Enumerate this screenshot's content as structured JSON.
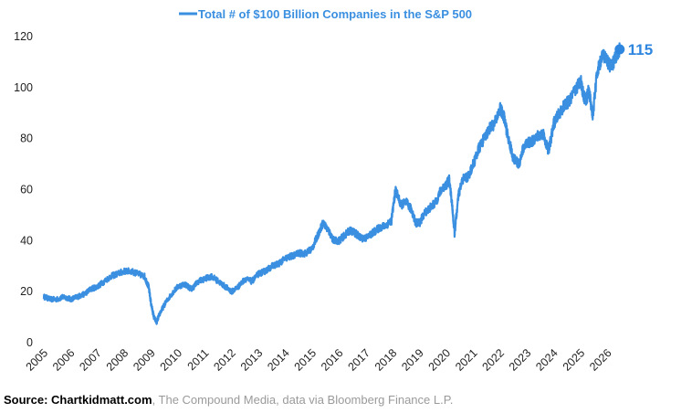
{
  "colors": {
    "line": "#3a8fe0",
    "callout": "#2f86df",
    "source_grey": "#9a9a9a"
  },
  "footer": {
    "source": "Source: Chartkidmatt.com",
    "rest": ", The Compound Media, data via Bloomberg Finance L.P."
  },
  "chart_data": {
    "type": "line",
    "title": "",
    "xlabel": "",
    "ylabel": "",
    "legend": {
      "label": "Total # of $100 Billion Companies in the S&P 500",
      "position": "top-center"
    },
    "grid": false,
    "xlim": [
      2005,
      2026.9
    ],
    "ylim": [
      0,
      120
    ],
    "x_ticks": [
      "2005",
      "2006",
      "2007",
      "2008",
      "2009",
      "2010",
      "2011",
      "2012",
      "2013",
      "2014",
      "2015",
      "2016",
      "2017",
      "2018",
      "2019",
      "2020",
      "2021",
      "2022",
      "2023",
      "2024",
      "2025",
      "2026"
    ],
    "y_ticks": [
      0,
      20,
      40,
      60,
      80,
      100,
      120
    ],
    "end_label": "115",
    "series": [
      {
        "name": "Total # of $100 Billion Companies in the S&P 500",
        "x": [
          2005.0,
          2005.25,
          2005.5,
          2005.75,
          2006.0,
          2006.25,
          2006.5,
          2006.75,
          2007.0,
          2007.25,
          2007.5,
          2007.75,
          2008.0,
          2008.25,
          2008.5,
          2008.75,
          2008.9,
          2009.0,
          2009.1,
          2009.2,
          2009.3,
          2009.5,
          2009.75,
          2010.0,
          2010.25,
          2010.5,
          2010.75,
          2011.0,
          2011.25,
          2011.5,
          2011.75,
          2012.0,
          2012.25,
          2012.5,
          2012.75,
          2013.0,
          2013.25,
          2013.5,
          2013.75,
          2014.0,
          2014.25,
          2014.5,
          2014.75,
          2015.0,
          2015.2,
          2015.4,
          2015.6,
          2015.8,
          2016.0,
          2016.2,
          2016.4,
          2016.6,
          2016.8,
          2017.0,
          2017.25,
          2017.5,
          2017.75,
          2017.95,
          2018.1,
          2018.3,
          2018.5,
          2018.7,
          2018.85,
          2019.0,
          2019.2,
          2019.4,
          2019.6,
          2019.8,
          2020.0,
          2020.1,
          2020.2,
          2020.3,
          2020.45,
          2020.6,
          2020.8,
          2021.0,
          2021.2,
          2021.4,
          2021.6,
          2021.8,
          2022.0,
          2022.15,
          2022.3,
          2022.5,
          2022.7,
          2022.85,
          2023.0,
          2023.2,
          2023.4,
          2023.6,
          2023.8,
          2024.0,
          2024.2,
          2024.4,
          2024.6,
          2024.8,
          2025.0,
          2025.1,
          2025.2,
          2025.3,
          2025.45,
          2025.6,
          2025.8,
          2026.0,
          2026.15,
          2026.3,
          2026.45
        ],
        "values": [
          18,
          17,
          17,
          18,
          17,
          18,
          19,
          21,
          22,
          24,
          26,
          27,
          28,
          28,
          27,
          26,
          22,
          15,
          10,
          8,
          11,
          15,
          19,
          22,
          23,
          21,
          24,
          25,
          26,
          24,
          22,
          20,
          22,
          25,
          24,
          27,
          28,
          30,
          31,
          33,
          34,
          35,
          35,
          37,
          42,
          47,
          44,
          40,
          40,
          42,
          44,
          43,
          41,
          41,
          43,
          45,
          46,
          48,
          60,
          54,
          55,
          52,
          47,
          47,
          51,
          53,
          55,
          60,
          62,
          64,
          55,
          43,
          58,
          64,
          65,
          70,
          76,
          80,
          84,
          86,
          92,
          88,
          80,
          72,
          70,
          76,
          78,
          79,
          81,
          82,
          75,
          86,
          90,
          93,
          95,
          99,
          103,
          97,
          95,
          99,
          89,
          105,
          113,
          110,
          108,
          112,
          115
        ]
      }
    ]
  }
}
